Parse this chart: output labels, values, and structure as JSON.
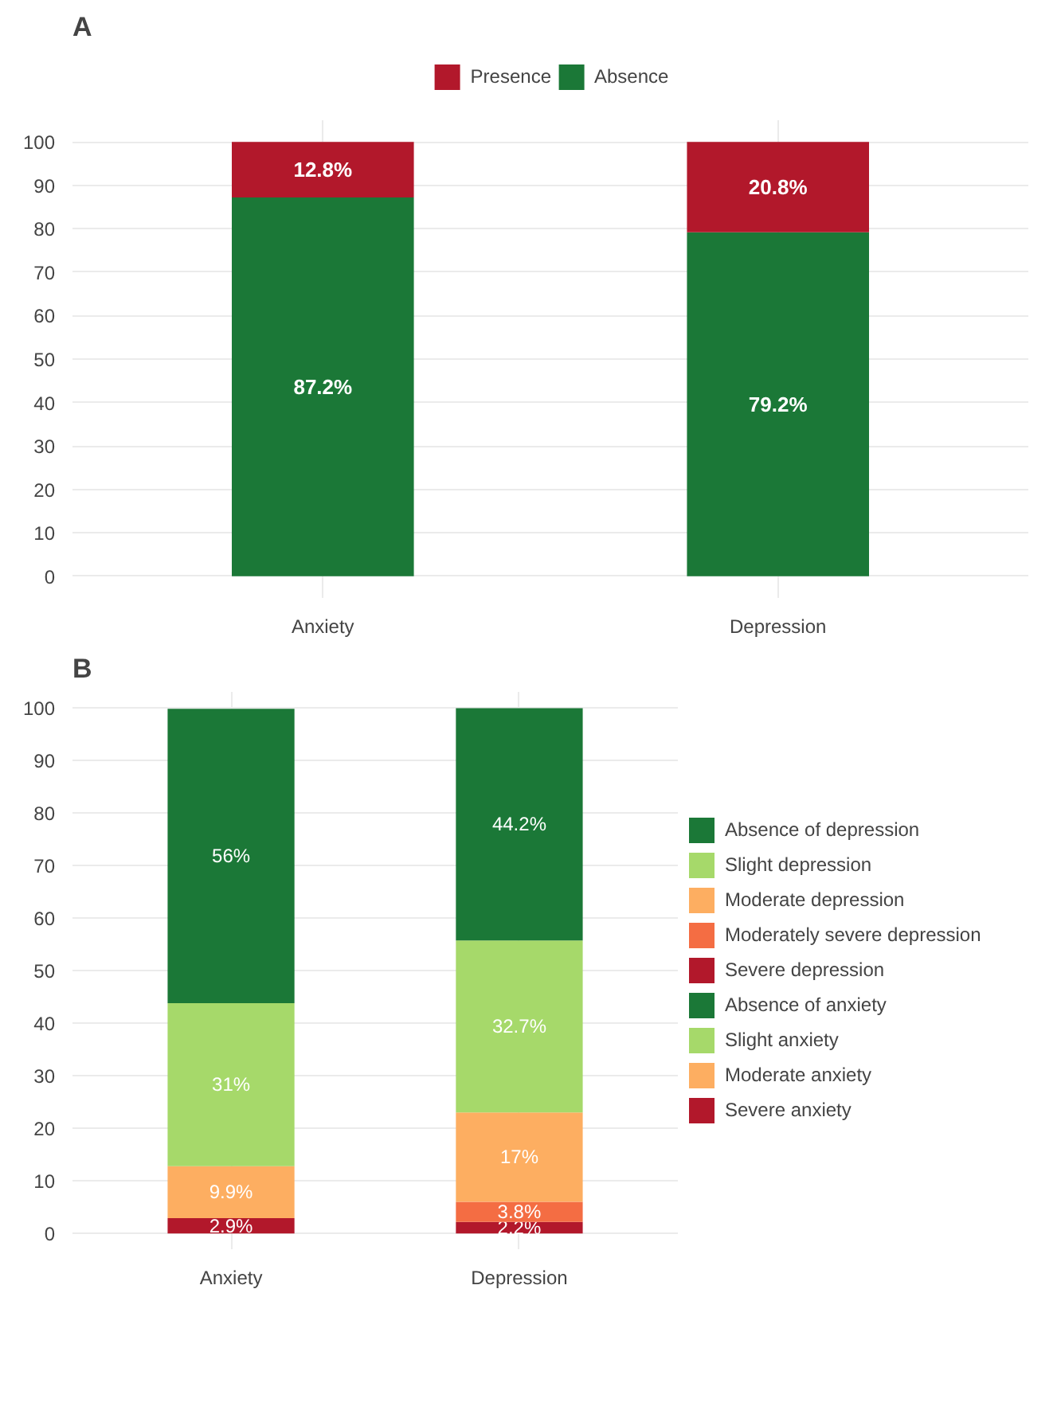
{
  "chart_data": [
    {
      "type": "bar",
      "title": "A",
      "stacked": true,
      "categories": [
        "Anxiety",
        "Depression"
      ],
      "ylim": [
        -5,
        105
      ],
      "yticks": [
        0,
        10,
        20,
        30,
        40,
        50,
        60,
        70,
        80,
        90,
        100
      ],
      "grid": true,
      "legend": "top",
      "series": [
        {
          "name": "Absence",
          "color": "#1b7837",
          "values": [
            87.2,
            79.2
          ],
          "value_labels": [
            "87.2%",
            "79.2%"
          ]
        },
        {
          "name": "Presence",
          "color": "#b2182b",
          "values": [
            12.8,
            20.8
          ],
          "value_labels": [
            "12.8%",
            "20.8%"
          ]
        }
      ]
    },
    {
      "type": "bar",
      "title": "B",
      "stacked": true,
      "categories": [
        "Anxiety",
        "Depression"
      ],
      "ylim": [
        -3,
        103
      ],
      "yticks": [
        0,
        10,
        20,
        30,
        40,
        50,
        60,
        70,
        80,
        90,
        100
      ],
      "grid": true,
      "legend": "right",
      "series": [
        {
          "name": "Severe anxiety",
          "color": "#b2182b",
          "values": [
            2.9,
            null
          ],
          "value_labels": [
            "2.9%",
            null
          ]
        },
        {
          "name": "Moderate anxiety",
          "color": "#fdae61",
          "values": [
            9.9,
            null
          ],
          "value_labels": [
            "9.9%",
            null
          ]
        },
        {
          "name": "Slight anxiety",
          "color": "#a6d96a",
          "values": [
            31,
            null
          ],
          "value_labels": [
            "31%",
            null
          ]
        },
        {
          "name": "Absence of anxiety",
          "color": "#1b7837",
          "values": [
            56,
            null
          ],
          "value_labels": [
            "56%",
            null
          ]
        },
        {
          "name": "Severe depression",
          "color": "#b2182b",
          "values": [
            null,
            2.2
          ],
          "value_labels": [
            null,
            "2.2%"
          ]
        },
        {
          "name": "Moderately severe depression",
          "color": "#f46d43",
          "values": [
            null,
            3.8
          ],
          "value_labels": [
            null,
            "3.8%"
          ]
        },
        {
          "name": "Moderate depression",
          "color": "#fdae61",
          "values": [
            null,
            17
          ],
          "value_labels": [
            null,
            "17%"
          ]
        },
        {
          "name": "Slight depression",
          "color": "#a6d96a",
          "values": [
            null,
            32.7
          ],
          "value_labels": [
            null,
            "32.7%"
          ]
        },
        {
          "name": "Absence of depression",
          "color": "#1b7837",
          "values": [
            null,
            44.2
          ],
          "value_labels": [
            null,
            "44.2%"
          ]
        }
      ]
    }
  ]
}
